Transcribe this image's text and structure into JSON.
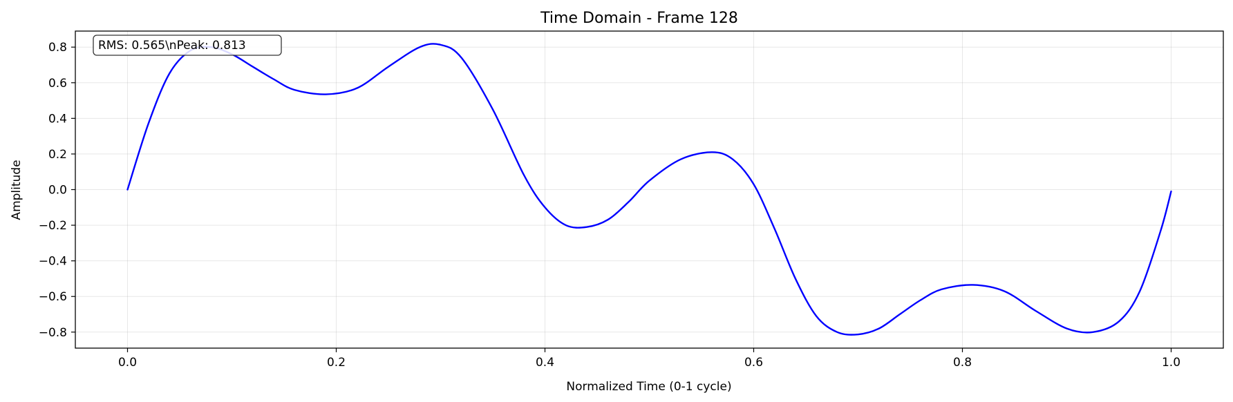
{
  "chart_data": {
    "type": "line",
    "title": "Time Domain - Frame 128",
    "xlabel": "Normalized Time (0-1 cycle)",
    "ylabel": "Amplitude",
    "xlim": [
      -0.05,
      1.05
    ],
    "ylim": [
      -0.89,
      0.89
    ],
    "xticks": [
      "0.0",
      "0.2",
      "0.4",
      "0.6",
      "0.8",
      "1.0"
    ],
    "yticks": [
      "0.8",
      "0.6",
      "0.4",
      "0.2",
      "0.0",
      "−0.2",
      "−0.4",
      "−0.6",
      "−0.8"
    ],
    "grid": true,
    "annotation": "RMS: 0.565\\nPeak: 0.813",
    "series": [
      {
        "color": "#0000ff",
        "x": [
          0.0,
          0.02,
          0.04,
          0.06,
          0.08,
          0.1,
          0.12,
          0.14,
          0.16,
          0.19,
          0.22,
          0.25,
          0.28,
          0.3,
          0.32,
          0.35,
          0.38,
          0.4,
          0.42,
          0.44,
          0.46,
          0.48,
          0.5,
          0.53,
          0.56,
          0.58,
          0.6,
          0.62,
          0.64,
          0.66,
          0.68,
          0.7,
          0.72,
          0.74,
          0.76,
          0.78,
          0.81,
          0.84,
          0.87,
          0.9,
          0.925,
          0.95,
          0.97,
          0.99,
          1.0
        ],
        "y": [
          0.0,
          0.37,
          0.65,
          0.78,
          0.8,
          0.76,
          0.69,
          0.62,
          0.56,
          0.535,
          0.57,
          0.69,
          0.8,
          0.813,
          0.74,
          0.45,
          0.08,
          -0.1,
          -0.2,
          -0.21,
          -0.17,
          -0.07,
          0.05,
          0.17,
          0.21,
          0.17,
          0.03,
          -0.22,
          -0.5,
          -0.71,
          -0.8,
          -0.813,
          -0.78,
          -0.7,
          -0.62,
          -0.56,
          -0.535,
          -0.57,
          -0.68,
          -0.78,
          -0.8,
          -0.74,
          -0.57,
          -0.23,
          -0.01
        ]
      }
    ]
  }
}
